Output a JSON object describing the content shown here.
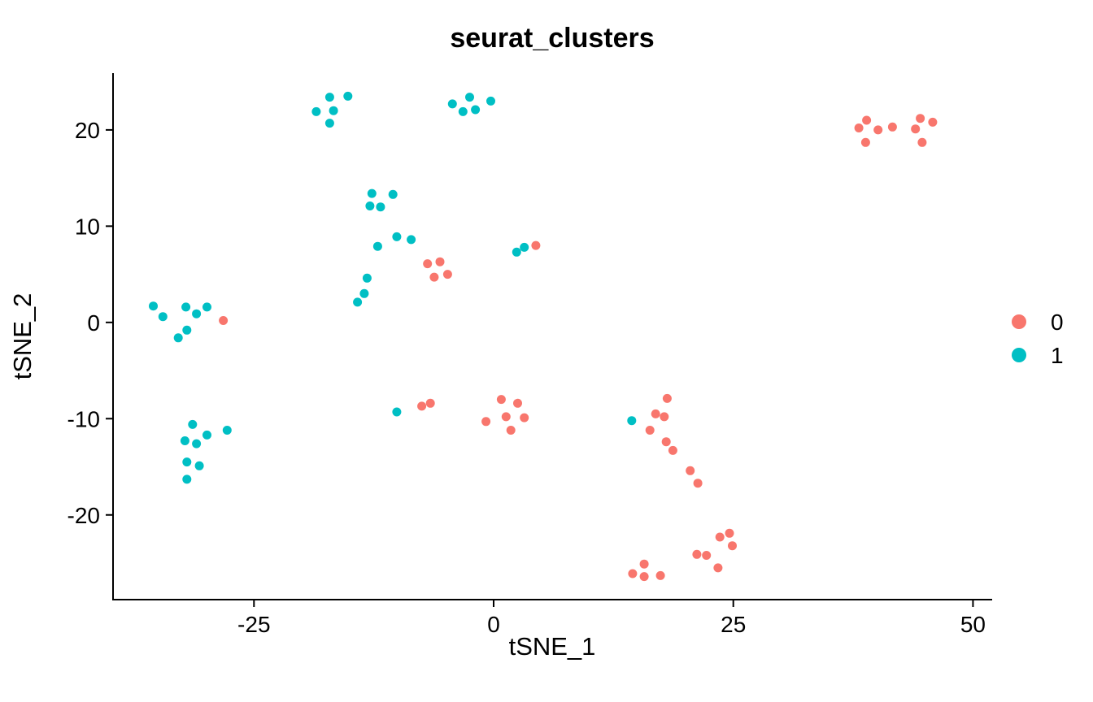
{
  "chart_data": {
    "type": "scatter",
    "title": "seurat_clusters",
    "xlabel": "tSNE_1",
    "ylabel": "tSNE_2",
    "xlim": [
      -39.7,
      52.0
    ],
    "ylim": [
      -28.8,
      25.9
    ],
    "x_ticks": [
      "-25",
      "0",
      "25",
      "50"
    ],
    "x_tick_values": [
      -25,
      0,
      25,
      50
    ],
    "y_ticks": [
      "-20",
      "-10",
      "0",
      "10",
      "20"
    ],
    "y_tick_values": [
      -20,
      -10,
      0,
      10,
      20
    ],
    "grid": false,
    "legend_position": "right",
    "legend": [
      {
        "label": "0",
        "color": "#F8766D"
      },
      {
        "label": "1",
        "color": "#00BFC4"
      }
    ],
    "series": [
      {
        "name": "0",
        "color": "#F8766D",
        "points": [
          [
            38.9,
            21.0
          ],
          [
            38.1,
            20.2
          ],
          [
            40.1,
            20.0
          ],
          [
            38.8,
            18.7
          ],
          [
            41.6,
            20.3
          ],
          [
            44.5,
            21.2
          ],
          [
            45.8,
            20.8
          ],
          [
            44.0,
            20.1
          ],
          [
            44.7,
            18.7
          ],
          [
            -6.9,
            6.1
          ],
          [
            -5.6,
            6.3
          ],
          [
            -6.2,
            4.7
          ],
          [
            -4.8,
            5.0
          ],
          [
            4.4,
            8.0
          ],
          [
            -28.2,
            0.2
          ],
          [
            -7.5,
            -8.7
          ],
          [
            -6.6,
            -8.4
          ],
          [
            0.8,
            -8.0
          ],
          [
            2.5,
            -8.4
          ],
          [
            1.3,
            -9.8
          ],
          [
            -0.8,
            -10.3
          ],
          [
            3.2,
            -9.9
          ],
          [
            1.8,
            -11.2
          ],
          [
            18.1,
            -7.9
          ],
          [
            16.9,
            -9.5
          ],
          [
            17.8,
            -9.8
          ],
          [
            16.3,
            -11.2
          ],
          [
            18.0,
            -12.4
          ],
          [
            18.7,
            -13.3
          ],
          [
            20.5,
            -15.4
          ],
          [
            21.3,
            -16.7
          ],
          [
            23.6,
            -22.3
          ],
          [
            24.6,
            -21.9
          ],
          [
            24.9,
            -23.2
          ],
          [
            21.2,
            -24.1
          ],
          [
            22.2,
            -24.2
          ],
          [
            23.4,
            -25.5
          ],
          [
            15.7,
            -25.1
          ],
          [
            14.5,
            -26.1
          ],
          [
            15.7,
            -26.4
          ],
          [
            17.4,
            -26.3
          ]
        ]
      },
      {
        "name": "1",
        "color": "#00BFC4",
        "points": [
          [
            -17.1,
            23.4
          ],
          [
            -15.2,
            23.5
          ],
          [
            -18.5,
            21.9
          ],
          [
            -16.7,
            22.0
          ],
          [
            -17.1,
            20.7
          ],
          [
            -4.3,
            22.7
          ],
          [
            -2.5,
            23.4
          ],
          [
            -0.3,
            23.0
          ],
          [
            -3.2,
            21.9
          ],
          [
            -1.9,
            22.1
          ],
          [
            -12.7,
            13.4
          ],
          [
            -10.5,
            13.3
          ],
          [
            -12.9,
            12.1
          ],
          [
            -11.8,
            12.0
          ],
          [
            -10.1,
            8.9
          ],
          [
            -8.6,
            8.6
          ],
          [
            -12.1,
            7.9
          ],
          [
            -13.2,
            4.6
          ],
          [
            -13.5,
            3.0
          ],
          [
            -14.2,
            2.1
          ],
          [
            2.4,
            7.3
          ],
          [
            3.2,
            7.8
          ],
          [
            -35.5,
            1.7
          ],
          [
            -34.5,
            0.6
          ],
          [
            -32.1,
            1.6
          ],
          [
            -31.0,
            0.9
          ],
          [
            -29.9,
            1.6
          ],
          [
            -32.0,
            -0.8
          ],
          [
            -32.9,
            -1.6
          ],
          [
            -31.4,
            -10.6
          ],
          [
            -27.8,
            -11.2
          ],
          [
            -29.9,
            -11.7
          ],
          [
            -32.2,
            -12.3
          ],
          [
            -31.0,
            -12.6
          ],
          [
            -32.0,
            -14.5
          ],
          [
            -30.7,
            -14.9
          ],
          [
            -32.0,
            -16.3
          ],
          [
            -10.1,
            -9.3
          ],
          [
            14.4,
            -10.2
          ]
        ]
      }
    ]
  }
}
